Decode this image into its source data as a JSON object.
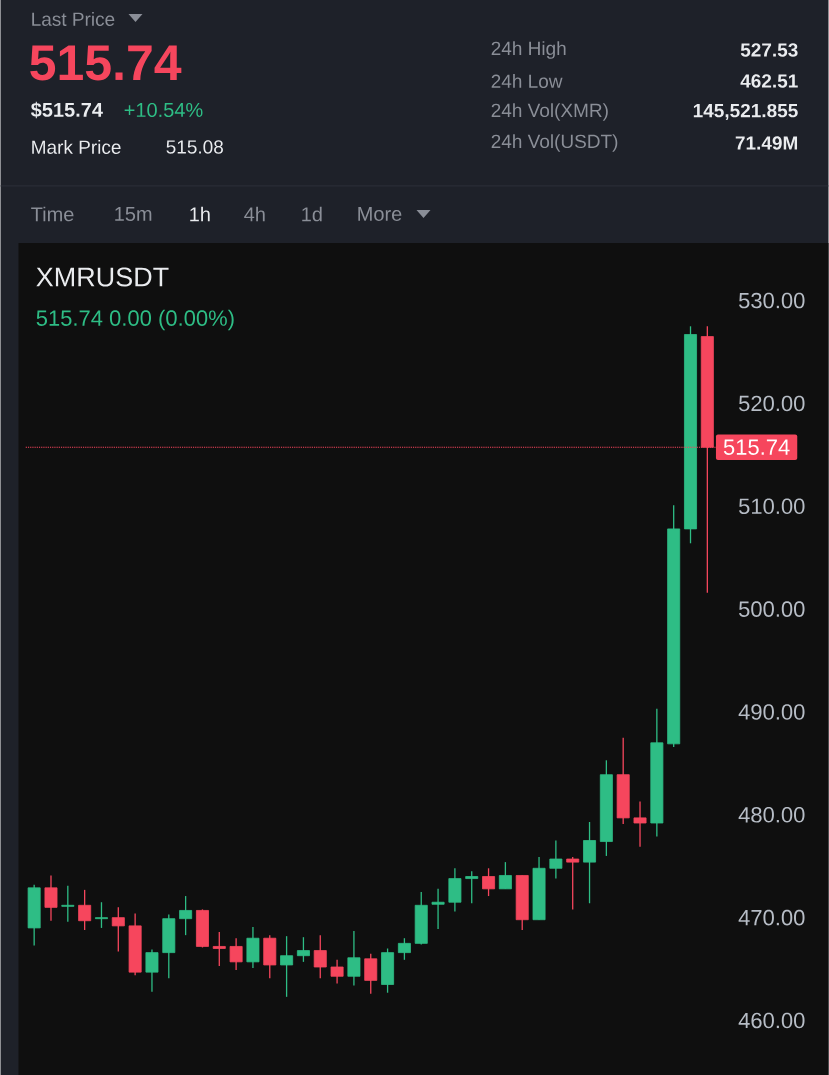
{
  "chart_data": {
    "type": "candlestick",
    "title": "XMRUSDT",
    "subtitle": "515.74  0.00 (0.00%)",
    "annotations": [
      "Last Price",
      "515.74",
      "$515.74",
      "+10.54%",
      "Mark Price",
      "515.08",
      "24h High",
      "527.53",
      "24h Low",
      "462.51",
      "24h Vol(XMR)",
      "145,521.855",
      "24h Vol(USDT)",
      "71.49M",
      "Time",
      "15m",
      "1h",
      "4h",
      "1d",
      "More"
    ],
    "categories": [
      null,
      null,
      null,
      null,
      null,
      null,
      null,
      null,
      null,
      null,
      null,
      null,
      null,
      null,
      null,
      null,
      null,
      null,
      null,
      null,
      null,
      null,
      null,
      null,
      null,
      null,
      null,
      null,
      null,
      null,
      null,
      null,
      null,
      null,
      null,
      null,
      null,
      null,
      null,
      null,
      null
    ],
    "ohlc": [
      [
        469.0,
        473.2,
        467.3,
        472.9
      ],
      [
        472.9,
        474.1,
        469.7,
        471.0
      ],
      [
        471.1,
        473.1,
        469.6,
        471.2
      ],
      [
        471.2,
        472.7,
        468.8,
        469.7
      ],
      [
        469.9,
        471.5,
        469.0,
        470.0
      ],
      [
        470.0,
        471.0,
        466.7,
        469.2
      ],
      [
        469.2,
        470.4,
        464.4,
        464.7
      ],
      [
        464.7,
        466.9,
        462.8,
        466.6
      ],
      [
        466.6,
        470.3,
        464.1,
        469.9
      ],
      [
        469.9,
        472.1,
        468.3,
        470.7
      ],
      [
        470.7,
        470.8,
        467.1,
        467.2
      ],
      [
        467.2,
        468.6,
        465.3,
        467.0
      ],
      [
        467.2,
        468.0,
        464.9,
        465.7
      ],
      [
        465.7,
        469.1,
        465.1,
        468.0
      ],
      [
        468.0,
        468.3,
        464.1,
        465.4
      ],
      [
        465.4,
        468.2,
        462.3,
        466.3
      ],
      [
        466.3,
        468.1,
        465.7,
        466.8
      ],
      [
        466.8,
        468.3,
        464.1,
        465.2
      ],
      [
        465.2,
        465.9,
        463.6,
        464.3
      ],
      [
        464.3,
        468.7,
        463.4,
        466.1
      ],
      [
        466.0,
        466.5,
        462.6,
        463.9
      ],
      [
        463.5,
        467.0,
        462.7,
        466.6
      ],
      [
        466.6,
        468.0,
        465.9,
        467.5
      ],
      [
        467.5,
        472.5,
        467.4,
        471.2
      ],
      [
        471.3,
        472.8,
        468.9,
        471.5
      ],
      [
        471.5,
        474.8,
        470.6,
        473.8
      ],
      [
        473.8,
        474.5,
        471.4,
        474.0
      ],
      [
        474.0,
        474.8,
        472.1,
        472.8
      ],
      [
        472.8,
        475.4,
        472.8,
        474.1
      ],
      [
        474.1,
        474.1,
        468.8,
        469.8
      ],
      [
        469.8,
        475.9,
        469.8,
        474.8
      ],
      [
        474.8,
        477.5,
        473.8,
        475.7
      ],
      [
        475.7,
        475.9,
        470.8,
        475.4
      ],
      [
        475.4,
        479.3,
        471.4,
        477.5
      ],
      [
        477.4,
        485.3,
        476.0,
        483.9
      ],
      [
        483.9,
        487.5,
        479.1,
        479.7
      ],
      [
        479.7,
        481.3,
        476.9,
        479.2
      ],
      [
        479.2,
        490.3,
        477.9,
        487.0
      ],
      [
        486.9,
        510.1,
        486.6,
        507.8
      ],
      [
        507.8,
        527.5,
        506.4,
        526.7
      ],
      [
        526.5,
        527.5,
        501.6,
        515.74
      ]
    ],
    "colors": [
      "#2ebd85",
      "#f6465d",
      "#2ebd85",
      "#f6465d",
      "#2ebd85",
      "#f6465d",
      "#f6465d",
      "#2ebd85",
      "#2ebd85",
      "#2ebd85",
      "#f6465d",
      "#f6465d",
      "#f6465d",
      "#2ebd85",
      "#f6465d",
      "#2ebd85",
      "#2ebd85",
      "#f6465d",
      "#f6465d",
      "#2ebd85",
      "#f6465d",
      "#2ebd85",
      "#2ebd85",
      "#2ebd85",
      "#2ebd85",
      "#2ebd85",
      "#2ebd85",
      "#f6465d",
      "#2ebd85",
      "#f6465d",
      "#2ebd85",
      "#2ebd85",
      "#f6465d",
      "#2ebd85",
      "#2ebd85",
      "#f6465d",
      "#f6465d",
      "#2ebd85",
      "#2ebd85",
      "#2ebd85",
      "#f6465d"
    ],
    "ylim": [
      454.7,
      535.6
    ],
    "yticks": [
      {
        "value": 460,
        "label": "460.00"
      },
      {
        "value": 470,
        "label": "470.00"
      },
      {
        "value": 480,
        "label": "480.00"
      },
      {
        "value": 490,
        "label": "490.00"
      },
      {
        "value": 500,
        "label": "500.00"
      },
      {
        "value": 510,
        "label": "510.00"
      },
      {
        "value": 520,
        "label": "520.00"
      },
      {
        "value": 530,
        "label": "530.00"
      }
    ],
    "tick_labels": "y",
    "ref_lines": [
      {
        "axis": "y",
        "value": 515.74,
        "label": "515.74",
        "color": "#f6465d",
        "line_style": "dotted"
      }
    ]
  }
}
